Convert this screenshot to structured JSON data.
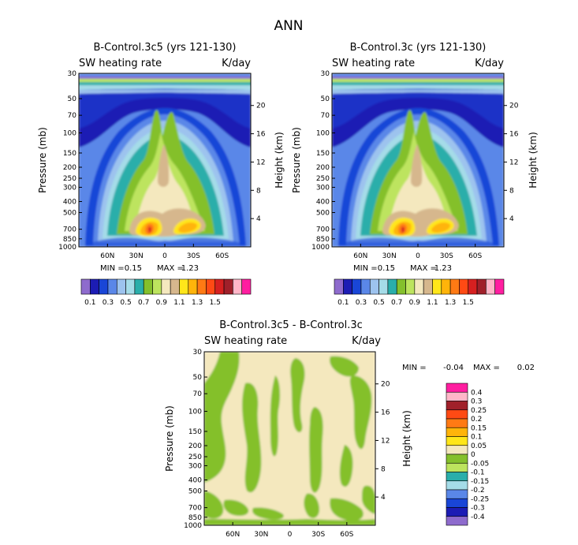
{
  "page": {
    "title": "ANN"
  },
  "panels": [
    {
      "id": "left",
      "title": "B-Control.3c5 (yrs 121-130)",
      "variable": "SW heating rate",
      "units": "K/day",
      "stats": {
        "min_label": "MIN =",
        "min": "0.15",
        "max_label": "MAX =",
        "max": "1.23"
      }
    },
    {
      "id": "right",
      "title": "B-Control.3c (yrs 121-130)",
      "variable": "SW heating rate",
      "units": "K/day",
      "stats": {
        "min_label": "MIN =",
        "min": "0.15",
        "max_label": "MAX =",
        "max": "1.23"
      }
    },
    {
      "id": "diff",
      "title": "B-Control.3c5 - B-Control.3c",
      "variable": "SW heating rate",
      "units": "K/day",
      "stats": {
        "min_label": "MIN =",
        "min": "-0.04",
        "max_label": "MAX =",
        "max": "0.02"
      }
    }
  ],
  "chart_data": [
    {
      "type": "heatmap",
      "title": "B-Control.3c5 (yrs 121-130)",
      "subtitle": "SW heating rate",
      "units": "K/day",
      "xlabel": "",
      "ylabel": "Pressure (mb)",
      "y2label": "Height (km)",
      "x_ticks": [
        "60N",
        "30N",
        "0",
        "30S",
        "60S"
      ],
      "x_tick_values": [
        60,
        30,
        0,
        -30,
        -60
      ],
      "xlim": [
        90,
        -90
      ],
      "y_ticks": [
        "30",
        "50",
        "70",
        "100",
        "150",
        "200",
        "250",
        "300",
        "400",
        "500",
        "700",
        "850",
        "1000"
      ],
      "y_tick_values": [
        30,
        50,
        70,
        100,
        150,
        200,
        250,
        300,
        400,
        500,
        700,
        850,
        1000
      ],
      "ylim": [
        30,
        1000
      ],
      "y2_ticks": [
        "20",
        "16",
        "12",
        "8",
        "4"
      ],
      "y2_tick_values": [
        20,
        16,
        12,
        8,
        4
      ],
      "min": 0.15,
      "max": 1.23,
      "colorbar_levels": [
        0.1,
        0.2,
        0.3,
        0.4,
        0.5,
        0.6,
        0.7,
        0.8,
        0.9,
        1.0,
        1.1,
        1.2,
        1.3,
        1.4,
        1.5
      ],
      "colorbar_labels": [
        "0.1",
        "0.3",
        "0.5",
        "0.7",
        "0.9",
        "1.1",
        "1.3",
        "1.5"
      ],
      "colors": [
        "#8e6bcd",
        "#1c1cb4",
        "#1946d7",
        "#5a87e8",
        "#9dc3ee",
        "#a5dce8",
        "#2aaeaa",
        "#84c02c",
        "#bde45e",
        "#f4e8be",
        "#d6b78d",
        "#ffe61a",
        "#ffb40a",
        "#ff7a14",
        "#ff4a14",
        "#d62020",
        "#a0202a",
        "#ffb6c8",
        "#ff1ea0"
      ]
    },
    {
      "type": "heatmap",
      "title": "B-Control.3c (yrs 121-130)",
      "subtitle": "SW heating rate",
      "units": "K/day",
      "xlabel": "",
      "ylabel": "Pressure (mb)",
      "y2label": "Height (km)",
      "x_ticks": [
        "60N",
        "30N",
        "0",
        "30S",
        "60S"
      ],
      "x_tick_values": [
        60,
        30,
        0,
        -30,
        -60
      ],
      "xlim": [
        90,
        -90
      ],
      "y_ticks": [
        "30",
        "50",
        "70",
        "100",
        "150",
        "200",
        "250",
        "300",
        "400",
        "500",
        "700",
        "850",
        "1000"
      ],
      "y_tick_values": [
        30,
        50,
        70,
        100,
        150,
        200,
        250,
        300,
        400,
        500,
        700,
        850,
        1000
      ],
      "ylim": [
        30,
        1000
      ],
      "y2_ticks": [
        "20",
        "16",
        "12",
        "8",
        "4"
      ],
      "y2_tick_values": [
        20,
        16,
        12,
        8,
        4
      ],
      "min": 0.15,
      "max": 1.23,
      "colorbar_levels": [
        0.1,
        0.2,
        0.3,
        0.4,
        0.5,
        0.6,
        0.7,
        0.8,
        0.9,
        1.0,
        1.1,
        1.2,
        1.3,
        1.4,
        1.5
      ],
      "colorbar_labels": [
        "0.1",
        "0.3",
        "0.5",
        "0.7",
        "0.9",
        "1.1",
        "1.3",
        "1.5"
      ]
    },
    {
      "type": "heatmap",
      "title": "B-Control.3c5 - B-Control.3c",
      "subtitle": "SW heating rate",
      "units": "K/day",
      "ylabel": "Pressure (mb)",
      "y2label": "Height (km)",
      "x_ticks": [
        "60N",
        "30N",
        "0",
        "30S",
        "60S"
      ],
      "x_tick_values": [
        60,
        30,
        0,
        -30,
        -60
      ],
      "xlim": [
        90,
        -90
      ],
      "y_ticks": [
        "30",
        "50",
        "70",
        "100",
        "150",
        "200",
        "250",
        "300",
        "400",
        "500",
        "700",
        "850",
        "1000"
      ],
      "y_tick_values": [
        30,
        50,
        70,
        100,
        150,
        200,
        250,
        300,
        400,
        500,
        700,
        850,
        1000
      ],
      "ylim": [
        30,
        1000
      ],
      "y2_ticks": [
        "20",
        "16",
        "12",
        "8",
        "4"
      ],
      "y2_tick_values": [
        20,
        16,
        12,
        8,
        4
      ],
      "min": -0.04,
      "max": 0.02,
      "colorbar_levels": [
        0.4,
        0.3,
        0.25,
        0.2,
        0.15,
        0.1,
        0.05,
        0,
        -0.05,
        -0.1,
        -0.15,
        -0.2,
        -0.25,
        -0.3,
        -0.4
      ],
      "colorbar_labels": [
        "0.4",
        "0.3",
        "0.25",
        "0.2",
        "0.15",
        "0.1",
        "0.05",
        "0",
        "-0.05",
        "-0.1",
        "-0.15",
        "-0.2",
        "-0.25",
        "-0.3",
        "-0.4"
      ],
      "colors": [
        "#ff1ea0",
        "#ffb6c8",
        "#a0202a",
        "#ff4a14",
        "#ff7a14",
        "#ffb40a",
        "#ffe61a",
        "#f4e8be",
        "#84c02c",
        "#bde45e",
        "#2aaeaa",
        "#a5dce8",
        "#5a87e8",
        "#1946d7",
        "#1c1cb4",
        "#8e6bcd"
      ]
    }
  ]
}
